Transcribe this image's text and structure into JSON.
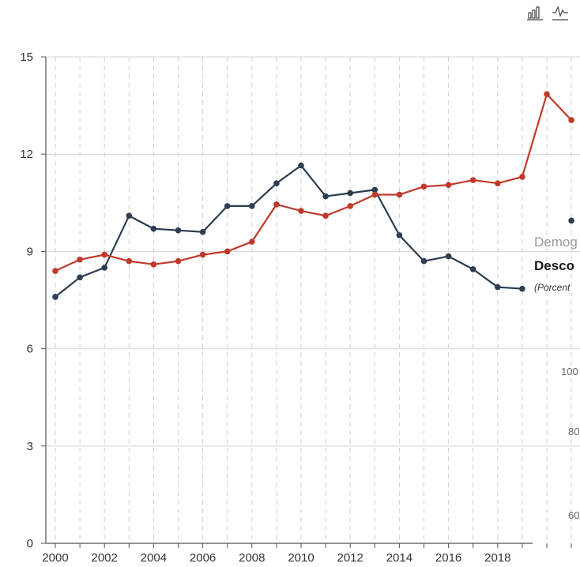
{
  "toolbar": {
    "bar_icon": "bar-chart-icon",
    "line_icon": "line-chart-icon"
  },
  "overlay": {
    "title_fragment": "Demog",
    "subtitle_fragment": "Desco",
    "note_fragment": "(Porcent",
    "ticks": [
      "100",
      "80",
      "60"
    ]
  },
  "chart_data": {
    "type": "line",
    "x": [
      2000,
      2001,
      2002,
      2003,
      2004,
      2005,
      2006,
      2007,
      2008,
      2009,
      2010,
      2011,
      2012,
      2013,
      2014,
      2015,
      2016,
      2017,
      2018,
      2019,
      2020,
      2021
    ],
    "x_tick_labels": [
      "2000",
      "2002",
      "2004",
      "2006",
      "2008",
      "2010",
      "2012",
      "2014",
      "2016",
      "2018"
    ],
    "y_tick_labels": [
      "0",
      "3",
      "6",
      "9",
      "12",
      "15"
    ],
    "ylim": [
      0,
      15
    ],
    "grid": true,
    "series": [
      {
        "color": "#2c3e50",
        "values": [
          7.6,
          8.2,
          8.5,
          10.1,
          9.7,
          9.65,
          9.6,
          10.4,
          10.4,
          11.1,
          11.65,
          10.7,
          10.8,
          10.9,
          9.5,
          8.7,
          8.85,
          8.45,
          7.9,
          7.85,
          null,
          9.95
        ]
      },
      {
        "color": "#c0392b",
        "values": [
          8.4,
          8.75,
          8.9,
          8.7,
          8.6,
          8.7,
          8.9,
          9.0,
          9.3,
          10.45,
          10.25,
          10.1,
          10.4,
          10.75,
          10.75,
          11.0,
          11.05,
          11.2,
          11.1,
          11.3,
          13.85,
          13.05
        ]
      }
    ]
  }
}
